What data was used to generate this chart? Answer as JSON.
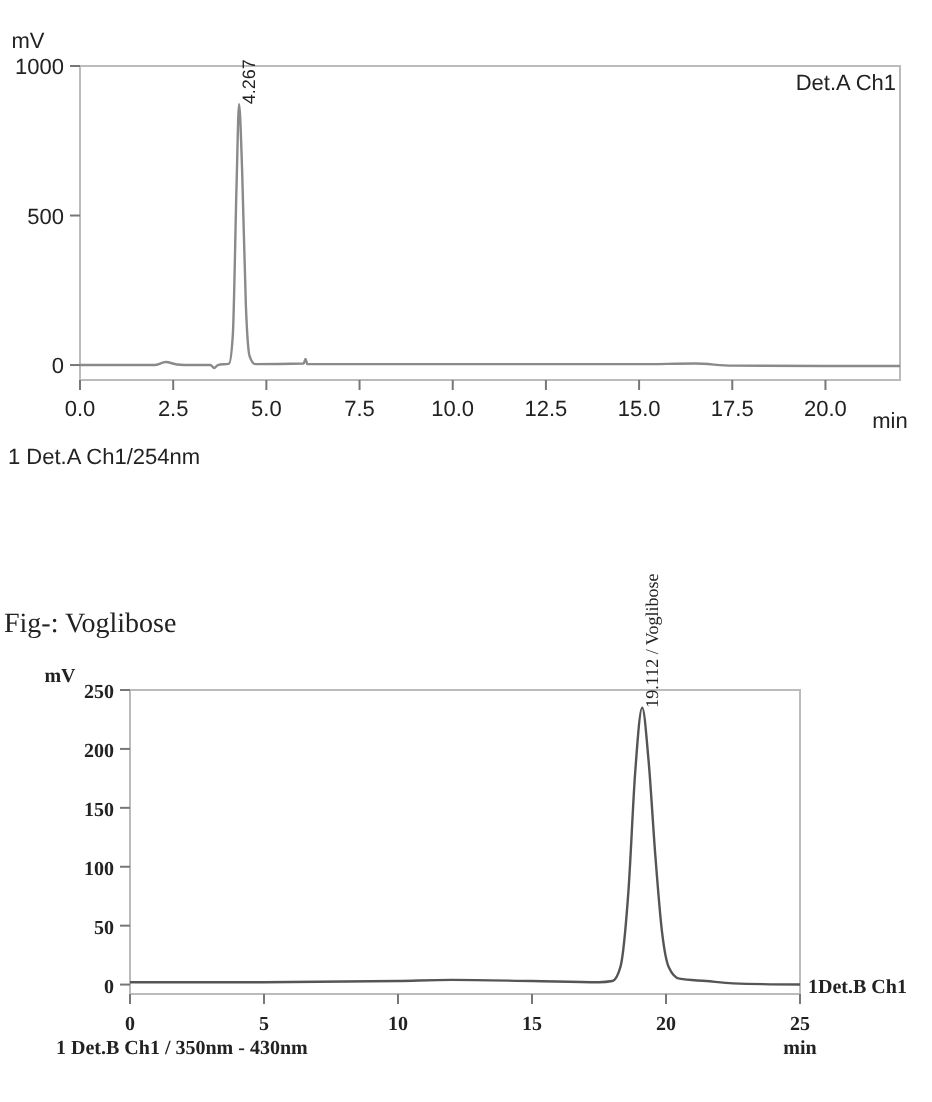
{
  "chart_data": [
    {
      "type": "line",
      "xlabel": "min",
      "ylabel": "mV",
      "xlim": [
        0,
        22
      ],
      "ylim": [
        -50,
        1000
      ],
      "xticks": [
        {
          "value": 0,
          "label": "0.0"
        },
        {
          "value": 2.5,
          "label": "2.5"
        },
        {
          "value": 5,
          "label": "5.0"
        },
        {
          "value": 7.5,
          "label": "7.5"
        },
        {
          "value": 10,
          "label": "10.0"
        },
        {
          "value": 12.5,
          "label": "12.5"
        },
        {
          "value": 15,
          "label": "15.0"
        },
        {
          "value": 17.5,
          "label": "17.5"
        },
        {
          "value": 20,
          "label": "20.0"
        }
      ],
      "yticks": [
        0,
        500,
        1000
      ],
      "series": [
        {
          "color": "#8a8a8a",
          "x": [
            0,
            2.0,
            2.3,
            2.6,
            3.0,
            3.5,
            3.6,
            3.7,
            4.0,
            4.1,
            4.2,
            4.267,
            4.35,
            4.45,
            4.55,
            4.7,
            6.0,
            6.05,
            6.1,
            10,
            15,
            16.5,
            17.5,
            20,
            22
          ],
          "values": [
            0,
            0,
            10,
            2,
            0,
            0,
            -10,
            0,
            5,
            100,
            600,
            872,
            650,
            200,
            30,
            3,
            5,
            20,
            3,
            3,
            3,
            5,
            -2,
            -3,
            -3
          ]
        }
      ],
      "annotations": [
        {
          "text": "4.267",
          "x": 4.267,
          "y": 872
        },
        "Det.A Ch1",
        "1 Det.A Ch1/254nm"
      ]
    },
    {
      "type": "line",
      "title": "Fig-: Voglibose",
      "xlabel": "min",
      "ylabel": "mV",
      "xlim": [
        0,
        25
      ],
      "ylim": [
        -8,
        250
      ],
      "xticks": [
        0,
        5,
        10,
        15,
        20,
        25
      ],
      "yticks": [
        0,
        50,
        100,
        150,
        200,
        250
      ],
      "series": [
        {
          "color": "#555555",
          "x": [
            0,
            5,
            10,
            12,
            15,
            17.5,
            18.0,
            18.3,
            18.6,
            18.85,
            19.112,
            19.35,
            19.6,
            19.85,
            20.1,
            20.5,
            21.5,
            22.5,
            25
          ],
          "values": [
            2,
            2,
            3,
            4,
            3,
            2,
            3,
            15,
            80,
            180,
            235,
            190,
            110,
            45,
            15,
            5,
            3,
            1,
            0
          ]
        }
      ],
      "annotations": [
        {
          "text": "19.112 / Voglibose",
          "x": 19.112,
          "y": 235
        },
        "1Det.B Ch1",
        "1 Det.B Ch1 / 350nm - 430nm"
      ]
    }
  ]
}
